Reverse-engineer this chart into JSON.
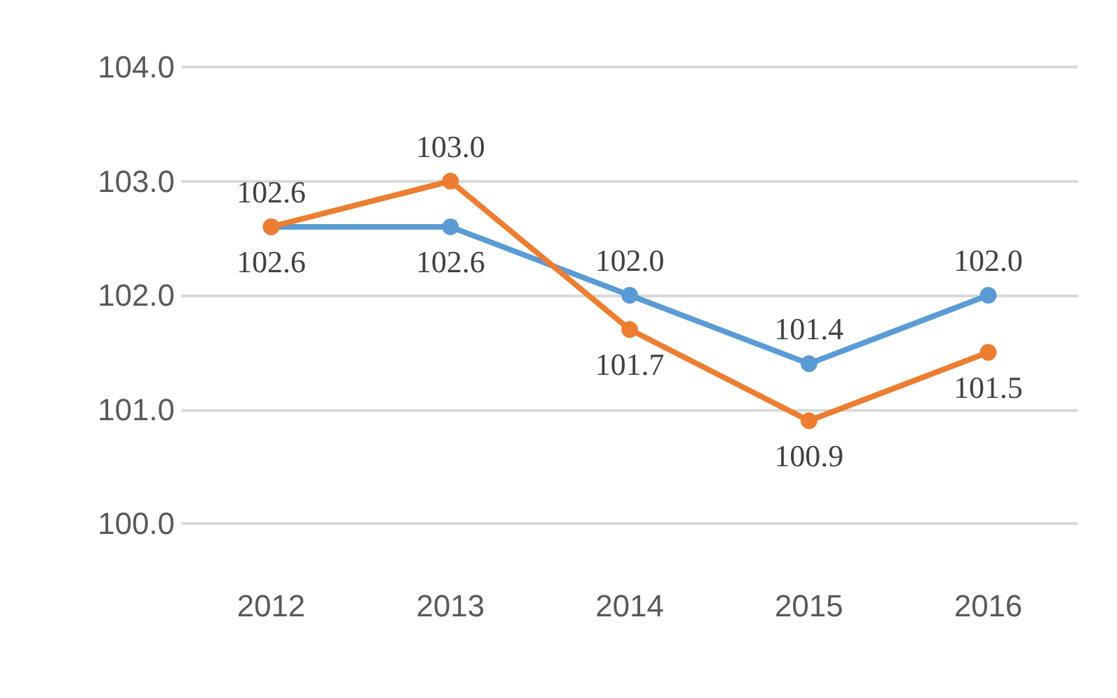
{
  "chart_data": {
    "type": "line",
    "categories": [
      "2012",
      "2013",
      "2014",
      "2015",
      "2016"
    ],
    "series": [
      {
        "color": "#5b9bd5",
        "values": [
          102.6,
          102.6,
          102.0,
          101.4,
          102.0
        ],
        "value_labels": [
          "102.6",
          "102.6",
          "102.0",
          "101.4",
          "102.0"
        ]
      },
      {
        "color": "#ed7d31",
        "values": [
          102.6,
          103.0,
          101.7,
          100.9,
          101.5
        ],
        "value_labels": [
          "102.6",
          "103.0",
          "101.7",
          "100.9",
          "101.5"
        ]
      }
    ],
    "ylim": [
      100,
      104
    ],
    "yticks": [
      {
        "value": 100,
        "label": "100.0"
      },
      {
        "value": 101,
        "label": "101.0"
      },
      {
        "value": 102,
        "label": "102.0"
      },
      {
        "value": 103,
        "label": "103.0"
      },
      {
        "value": 104,
        "label": "104.0"
      }
    ],
    "grid": "y",
    "marker": "circle",
    "line_style": "solid"
  }
}
